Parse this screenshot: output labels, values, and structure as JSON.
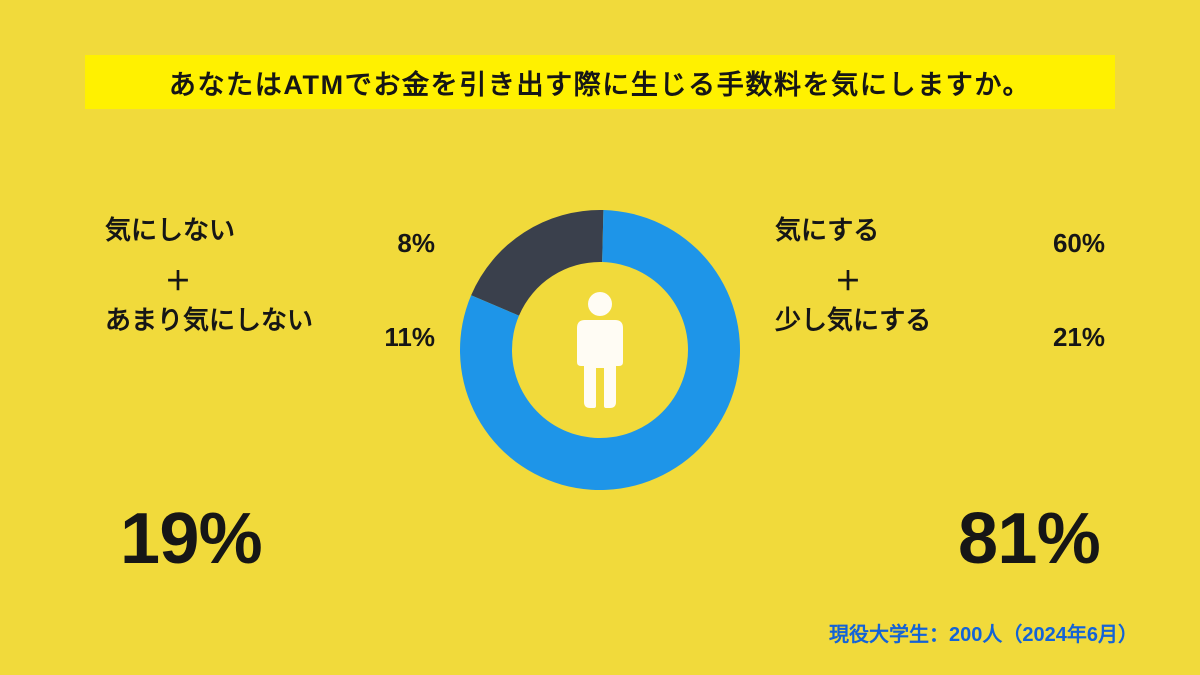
{
  "colors": {
    "background": "#f1da3b",
    "title_bar_bg": "#fff100",
    "text": "#161616",
    "donut_primary": "#1e95e8",
    "donut_secondary": "#3a404c",
    "person_icon": "#fffcf4",
    "footnote": "#1463d6"
  },
  "title": {
    "text": "あなたはATMでお金を引き出す際に生じる手数料を気にしますか。",
    "fontsize": 27,
    "fontweight": 900
  },
  "donut": {
    "type": "donut",
    "outer_radius": 140,
    "inner_radius": 88,
    "center_fill": "#f1da3b",
    "segments": [
      {
        "label": "secondary",
        "percent": 19,
        "color": "#3a404c",
        "start_angle_deg": -90
      },
      {
        "label": "primary",
        "percent": 81,
        "color": "#1e95e8"
      }
    ],
    "rotation_start_deg": -157
  },
  "left": {
    "item1": {
      "label": "気にしない",
      "percent": "8%"
    },
    "plus": "＋",
    "item2": {
      "label": "あまり気にしない",
      "percent": "11%"
    },
    "total": "19%"
  },
  "right": {
    "item1": {
      "label": "気にする",
      "percent": "60%"
    },
    "plus": "＋",
    "item2": {
      "label": "少し気にする",
      "percent": "21%"
    },
    "total": "81%"
  },
  "footnote": "現役大学生：200人（2024年6月）",
  "label_fontsize": 26,
  "total_fontsize": 72,
  "footnote_fontsize": 20
}
